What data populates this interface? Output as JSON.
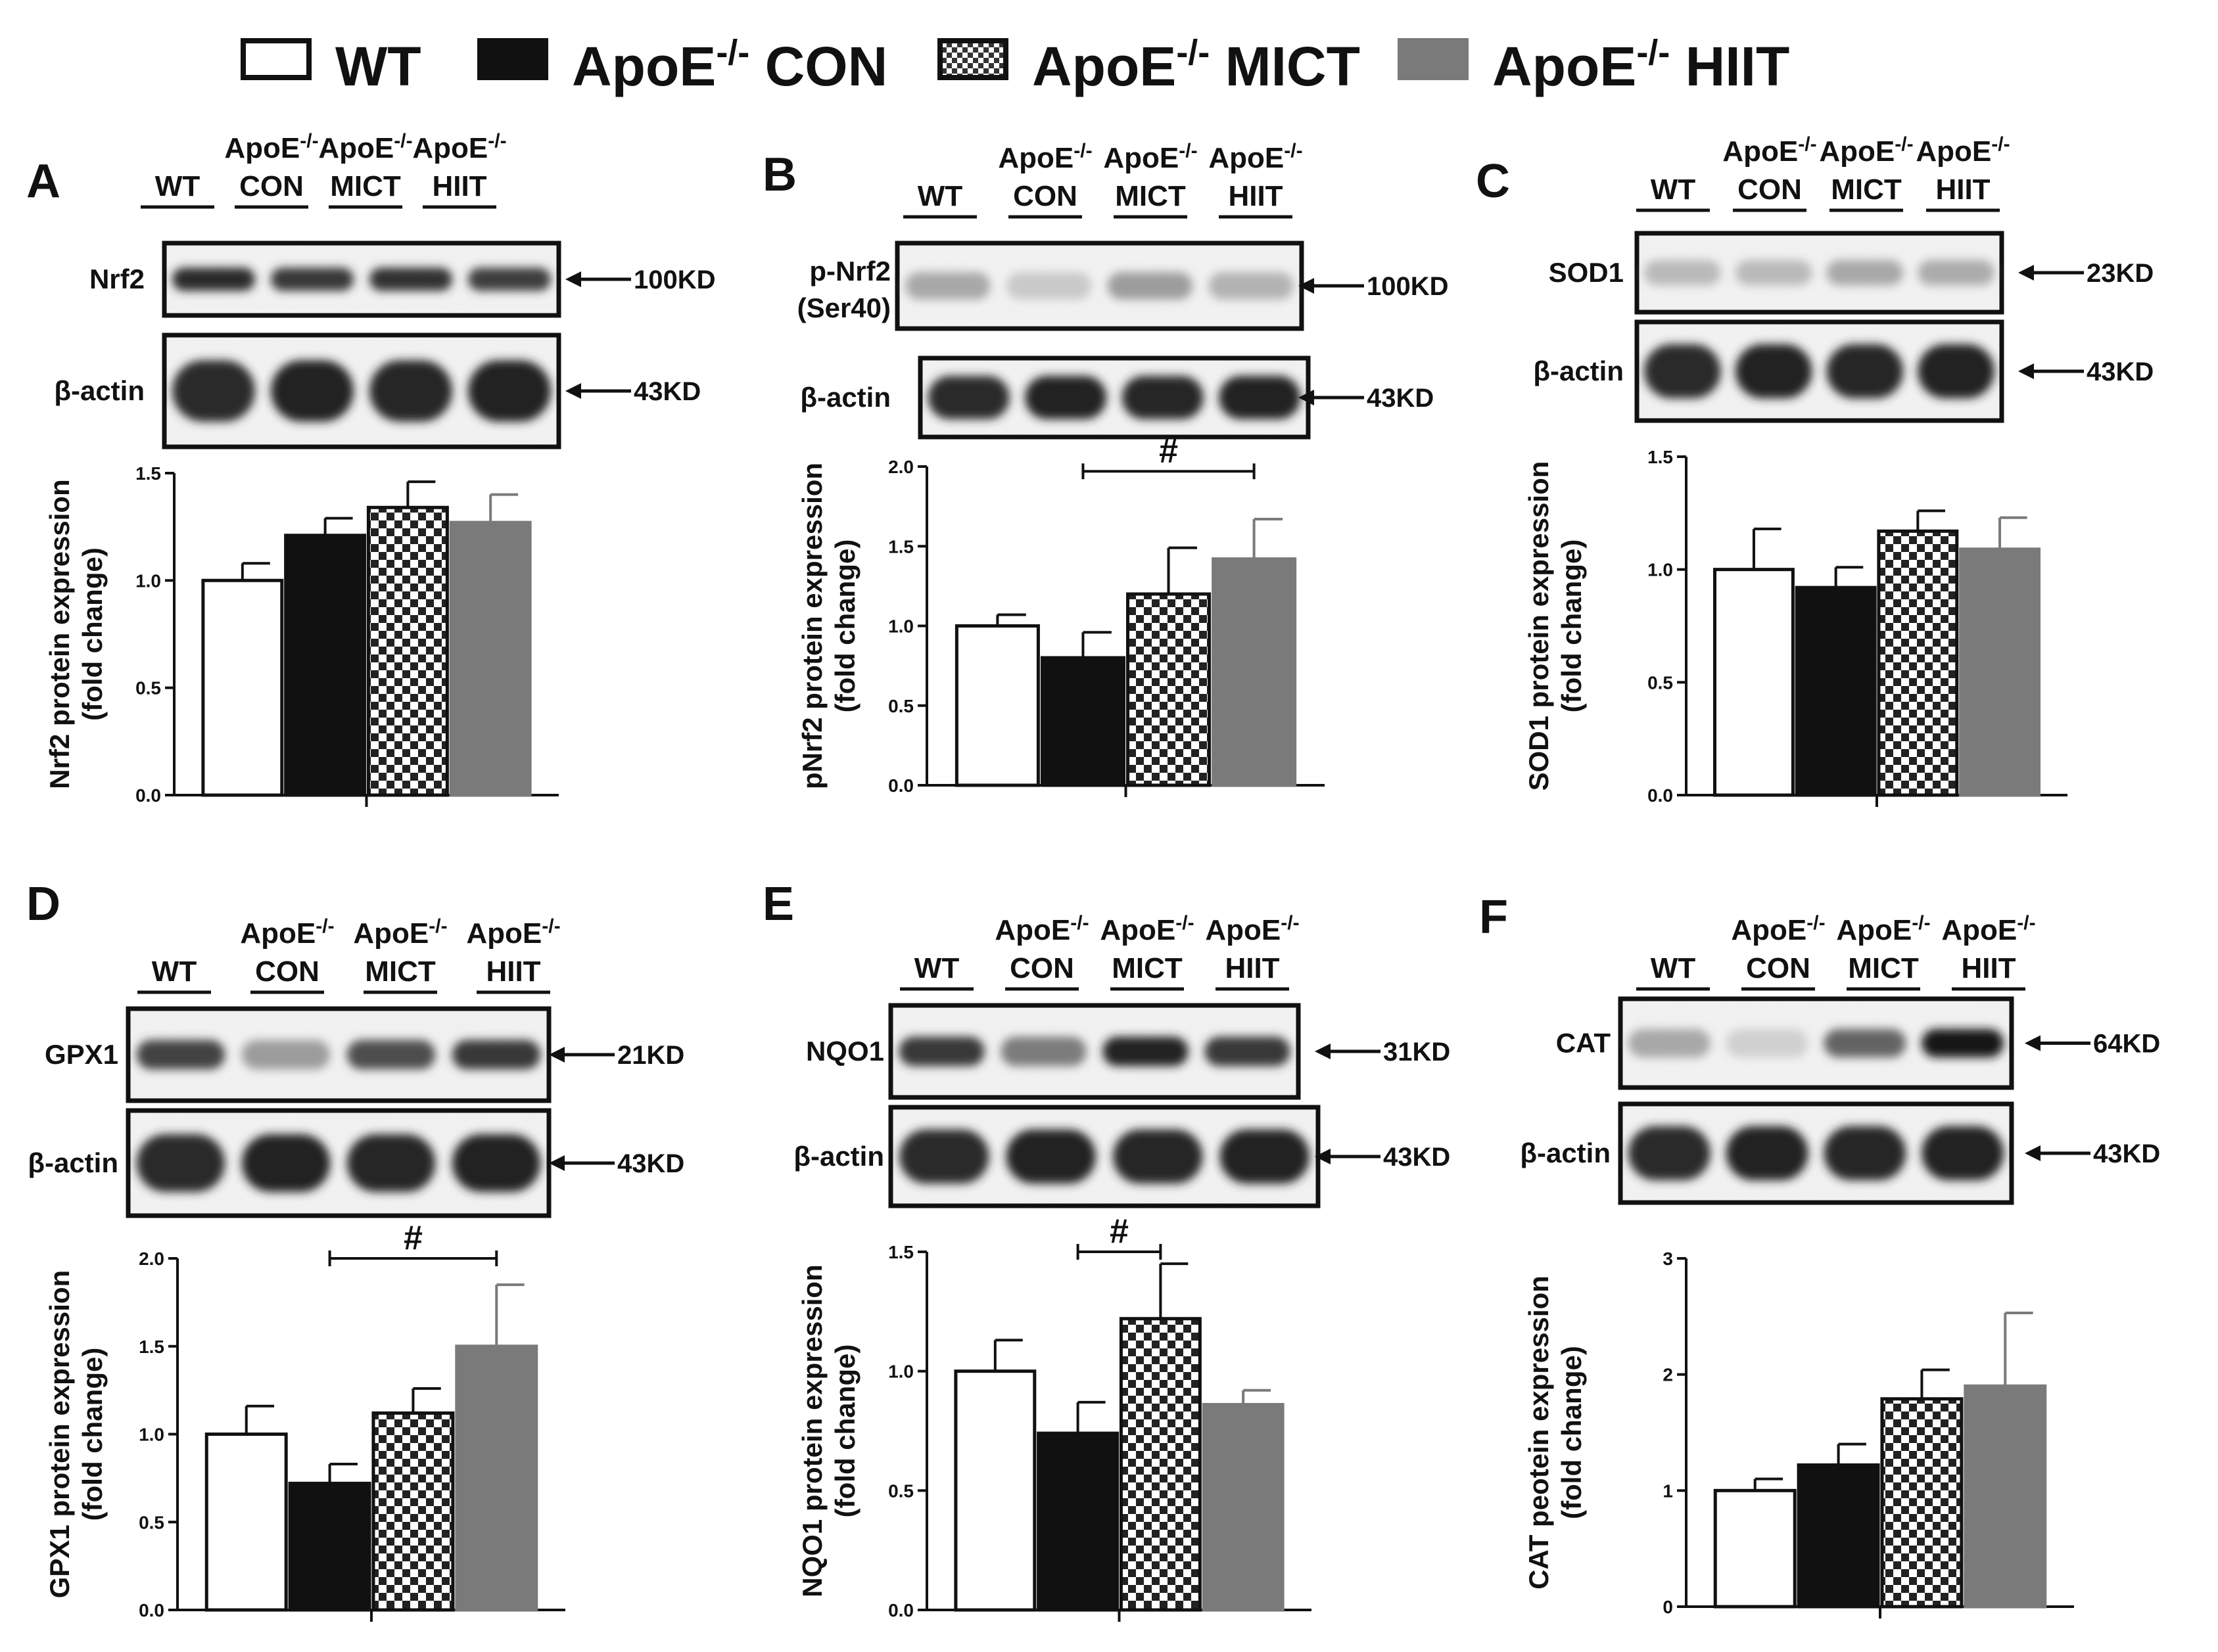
{
  "legend": [
    {
      "name": "WT",
      "sup": "",
      "suffix": "",
      "pattern": "white"
    },
    {
      "name": "ApoE",
      "sup": "-/-",
      "suffix": " CON",
      "pattern": "black"
    },
    {
      "name": "ApoE",
      "sup": "-/-",
      "suffix": " MICT",
      "pattern": "checker"
    },
    {
      "name": "ApoE",
      "sup": "-/-",
      "suffix": " HIIT",
      "pattern": "gray"
    }
  ],
  "lane_labels": [
    {
      "line1": "",
      "sup": "",
      "line2": "WT"
    },
    {
      "line1": "ApoE",
      "sup": "-/-",
      "line2": "CON"
    },
    {
      "line1": "ApoE",
      "sup": "-/-",
      "line2": "MICT"
    },
    {
      "line1": "ApoE",
      "sup": "-/-",
      "line2": "HIIT"
    }
  ],
  "colors": {
    "wt": "#ffffff",
    "con": "#111111",
    "checker_dark": "#222222",
    "checker_light": "#ffffff",
    "hiit": "#7a7a7a"
  },
  "chart_data": [
    {
      "panel": "A",
      "type": "bar",
      "blot_top_label": "Nrf2",
      "blot_top_kd": "100KD",
      "blot_bottom_label": "β-actin",
      "blot_bottom_kd": "43KD",
      "top_band_intensity": [
        0.85,
        0.8,
        0.82,
        0.78
      ],
      "ylabel_line1": "Nrf2 protein expression",
      "ylabel_line2": "(fold change)",
      "ylim": [
        0,
        1.5
      ],
      "yticks": [
        "0.0",
        "0.5",
        "1.0",
        "1.5"
      ],
      "ytick_values": [
        0,
        0.5,
        1.0,
        1.5
      ],
      "categories": [
        "WT",
        "ApoE-/- CON",
        "ApoE-/- MICT",
        "ApoE-/- HIIT"
      ],
      "values": [
        1.0,
        1.21,
        1.34,
        1.27
      ],
      "errors": [
        0.08,
        0.08,
        0.12,
        0.13
      ],
      "significance": []
    },
    {
      "panel": "B",
      "type": "bar",
      "blot_top_label": "p-Nrf2",
      "blot_top_label2": "(Ser40)",
      "blot_top_kd": "100KD",
      "blot_bottom_label": "β-actin",
      "blot_bottom_kd": "43KD",
      "top_band_intensity": [
        0.3,
        0.15,
        0.35,
        0.25
      ],
      "ylabel_line1": "pNrf2 protein expression",
      "ylabel_line2": "(fold change)",
      "ylim": [
        0,
        2.0
      ],
      "yticks": [
        "0.0",
        "0.5",
        "1.0",
        "1.5",
        "2.0"
      ],
      "ytick_values": [
        0,
        0.5,
        1.0,
        1.5,
        2.0
      ],
      "categories": [
        "WT",
        "ApoE-/- CON",
        "ApoE-/- MICT",
        "ApoE-/- HIIT"
      ],
      "values": [
        1.0,
        0.8,
        1.2,
        1.42
      ],
      "errors": [
        0.07,
        0.16,
        0.29,
        0.25
      ],
      "significance": [
        {
          "from": 1,
          "to": 3,
          "label": "#",
          "y": 1.97
        }
      ]
    },
    {
      "panel": "C",
      "type": "bar",
      "blot_top_label": "SOD1",
      "blot_top_kd": "23KD",
      "blot_bottom_label": "β-actin",
      "blot_bottom_kd": "43KD",
      "top_band_intensity": [
        0.22,
        0.22,
        0.3,
        0.28
      ],
      "ylabel_line1": "SOD1 protein expression",
      "ylabel_line2": "(fold change)",
      "ylim": [
        0,
        1.5
      ],
      "yticks": [
        "0.0",
        "0.5",
        "1.0",
        "1.5"
      ],
      "ytick_values": [
        0,
        0.5,
        1.0,
        1.5
      ],
      "categories": [
        "WT",
        "ApoE-/- CON",
        "ApoE-/- MICT",
        "ApoE-/- HIIT"
      ],
      "values": [
        1.0,
        0.92,
        1.17,
        1.09
      ],
      "errors": [
        0.18,
        0.09,
        0.09,
        0.14
      ],
      "significance": []
    },
    {
      "panel": "D",
      "type": "bar",
      "blot_top_label": "GPX1",
      "blot_top_kd": "21KD",
      "blot_bottom_label": "β-actin",
      "blot_bottom_kd": "43KD",
      "top_band_intensity": [
        0.75,
        0.35,
        0.7,
        0.8
      ],
      "ylabel_line1": "GPX1 protein expression",
      "ylabel_line2": "(fold change)",
      "ylim": [
        0,
        2.0
      ],
      "yticks": [
        "0.0",
        "0.5",
        "1.0",
        "1.5",
        "2.0"
      ],
      "ytick_values": [
        0,
        0.5,
        1.0,
        1.5,
        2.0
      ],
      "categories": [
        "WT",
        "ApoE-/- CON",
        "ApoE-/- MICT",
        "ApoE-/- HIIT"
      ],
      "values": [
        1.0,
        0.72,
        1.12,
        1.5
      ],
      "errors": [
        0.16,
        0.11,
        0.14,
        0.35
      ],
      "significance": [
        {
          "from": 1,
          "to": 3,
          "label": "#",
          "y": 2.0
        }
      ]
    },
    {
      "panel": "E",
      "type": "bar",
      "blot_top_label": "NQO1",
      "blot_top_kd": "31KD",
      "blot_bottom_label": "β-actin",
      "blot_bottom_kd": "43KD",
      "top_band_intensity": [
        0.8,
        0.5,
        0.9,
        0.8
      ],
      "ylabel_line1": "NQO1 protein expression",
      "ylabel_line2": "(fold change)",
      "ylim": [
        0,
        1.5
      ],
      "yticks": [
        "0.0",
        "0.5",
        "1.0",
        "1.5"
      ],
      "ytick_values": [
        0,
        0.5,
        1.0,
        1.5
      ],
      "categories": [
        "WT",
        "ApoE-/- CON",
        "ApoE-/- MICT",
        "ApoE-/- HIIT"
      ],
      "values": [
        1.0,
        0.74,
        1.22,
        0.86
      ],
      "errors": [
        0.13,
        0.13,
        0.23,
        0.06
      ],
      "significance": [
        {
          "from": 1,
          "to": 2,
          "label": "#",
          "y": 1.5
        }
      ]
    },
    {
      "panel": "F",
      "type": "bar",
      "blot_top_label": "CAT",
      "blot_top_kd": "64KD",
      "blot_bottom_label": "β-actin",
      "blot_bottom_kd": "43KD",
      "top_band_intensity": [
        0.3,
        0.12,
        0.6,
        0.95
      ],
      "ylabel_line1": "CAT peotein expression",
      "ylabel_line2": "(fold change)",
      "ylim": [
        0,
        3
      ],
      "yticks": [
        "0",
        "1",
        "2",
        "3"
      ],
      "ytick_values": [
        0,
        1,
        2,
        3
      ],
      "categories": [
        "WT",
        "ApoE-/- CON",
        "ApoE-/- MICT",
        "ApoE-/- HIIT"
      ],
      "values": [
        1.0,
        1.22,
        1.79,
        1.9
      ],
      "errors": [
        0.1,
        0.18,
        0.25,
        0.63
      ],
      "significance": []
    }
  ]
}
